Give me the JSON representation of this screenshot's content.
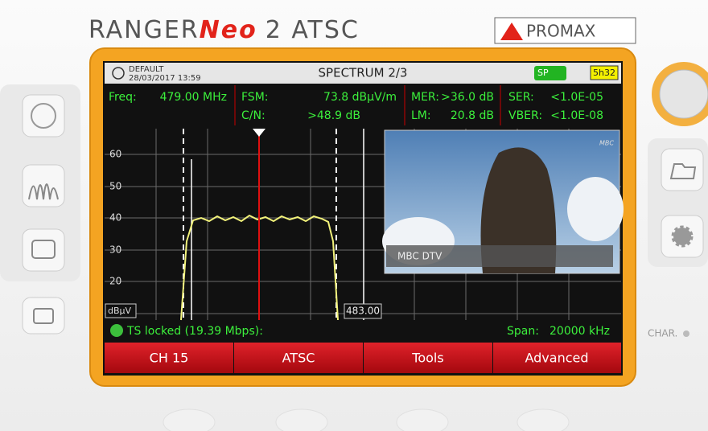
{
  "brand": {
    "name_a": "RANGER",
    "name_b": "Neo",
    "name_c": "2 ATSC",
    "maker": "PROMAX"
  },
  "header": {
    "profile": "DEFAULT",
    "datetime": "28/03/2017 13:59",
    "title": "SPECTRUM 2/3",
    "badge": "SP",
    "battery": "5h32"
  },
  "measurements": [
    {
      "label": "Freq:",
      "value": "479.00 MHz"
    },
    {
      "label": "FSM:",
      "value": "73.8 dBµV/m"
    },
    {
      "label": "C/N:",
      "value": ">48.9 dB"
    },
    {
      "label": "MER:",
      "value": ">36.0 dB"
    },
    {
      "label": "LM:",
      "value": "20.8 dB"
    },
    {
      "label": "SER:",
      "value": "<1.0E-05"
    },
    {
      "label": "VBER:",
      "value": "<1.0E-08"
    }
  ],
  "spectrum": {
    "y_labels": [
      "60",
      "50",
      "40",
      "30",
      "20"
    ],
    "unit": "dBµV",
    "marker_label": "483.00"
  },
  "video": {
    "channel": "MBC DTV",
    "logo": "MBC"
  },
  "status": {
    "lock": "TS locked (19.39 Mbps):",
    "span_label": "Span:",
    "span_value": "20000 kHz"
  },
  "softkeys": [
    "CH 15",
    "ATSC",
    "Tools",
    "Advanced"
  ],
  "side": {
    "char": "CHAR."
  }
}
